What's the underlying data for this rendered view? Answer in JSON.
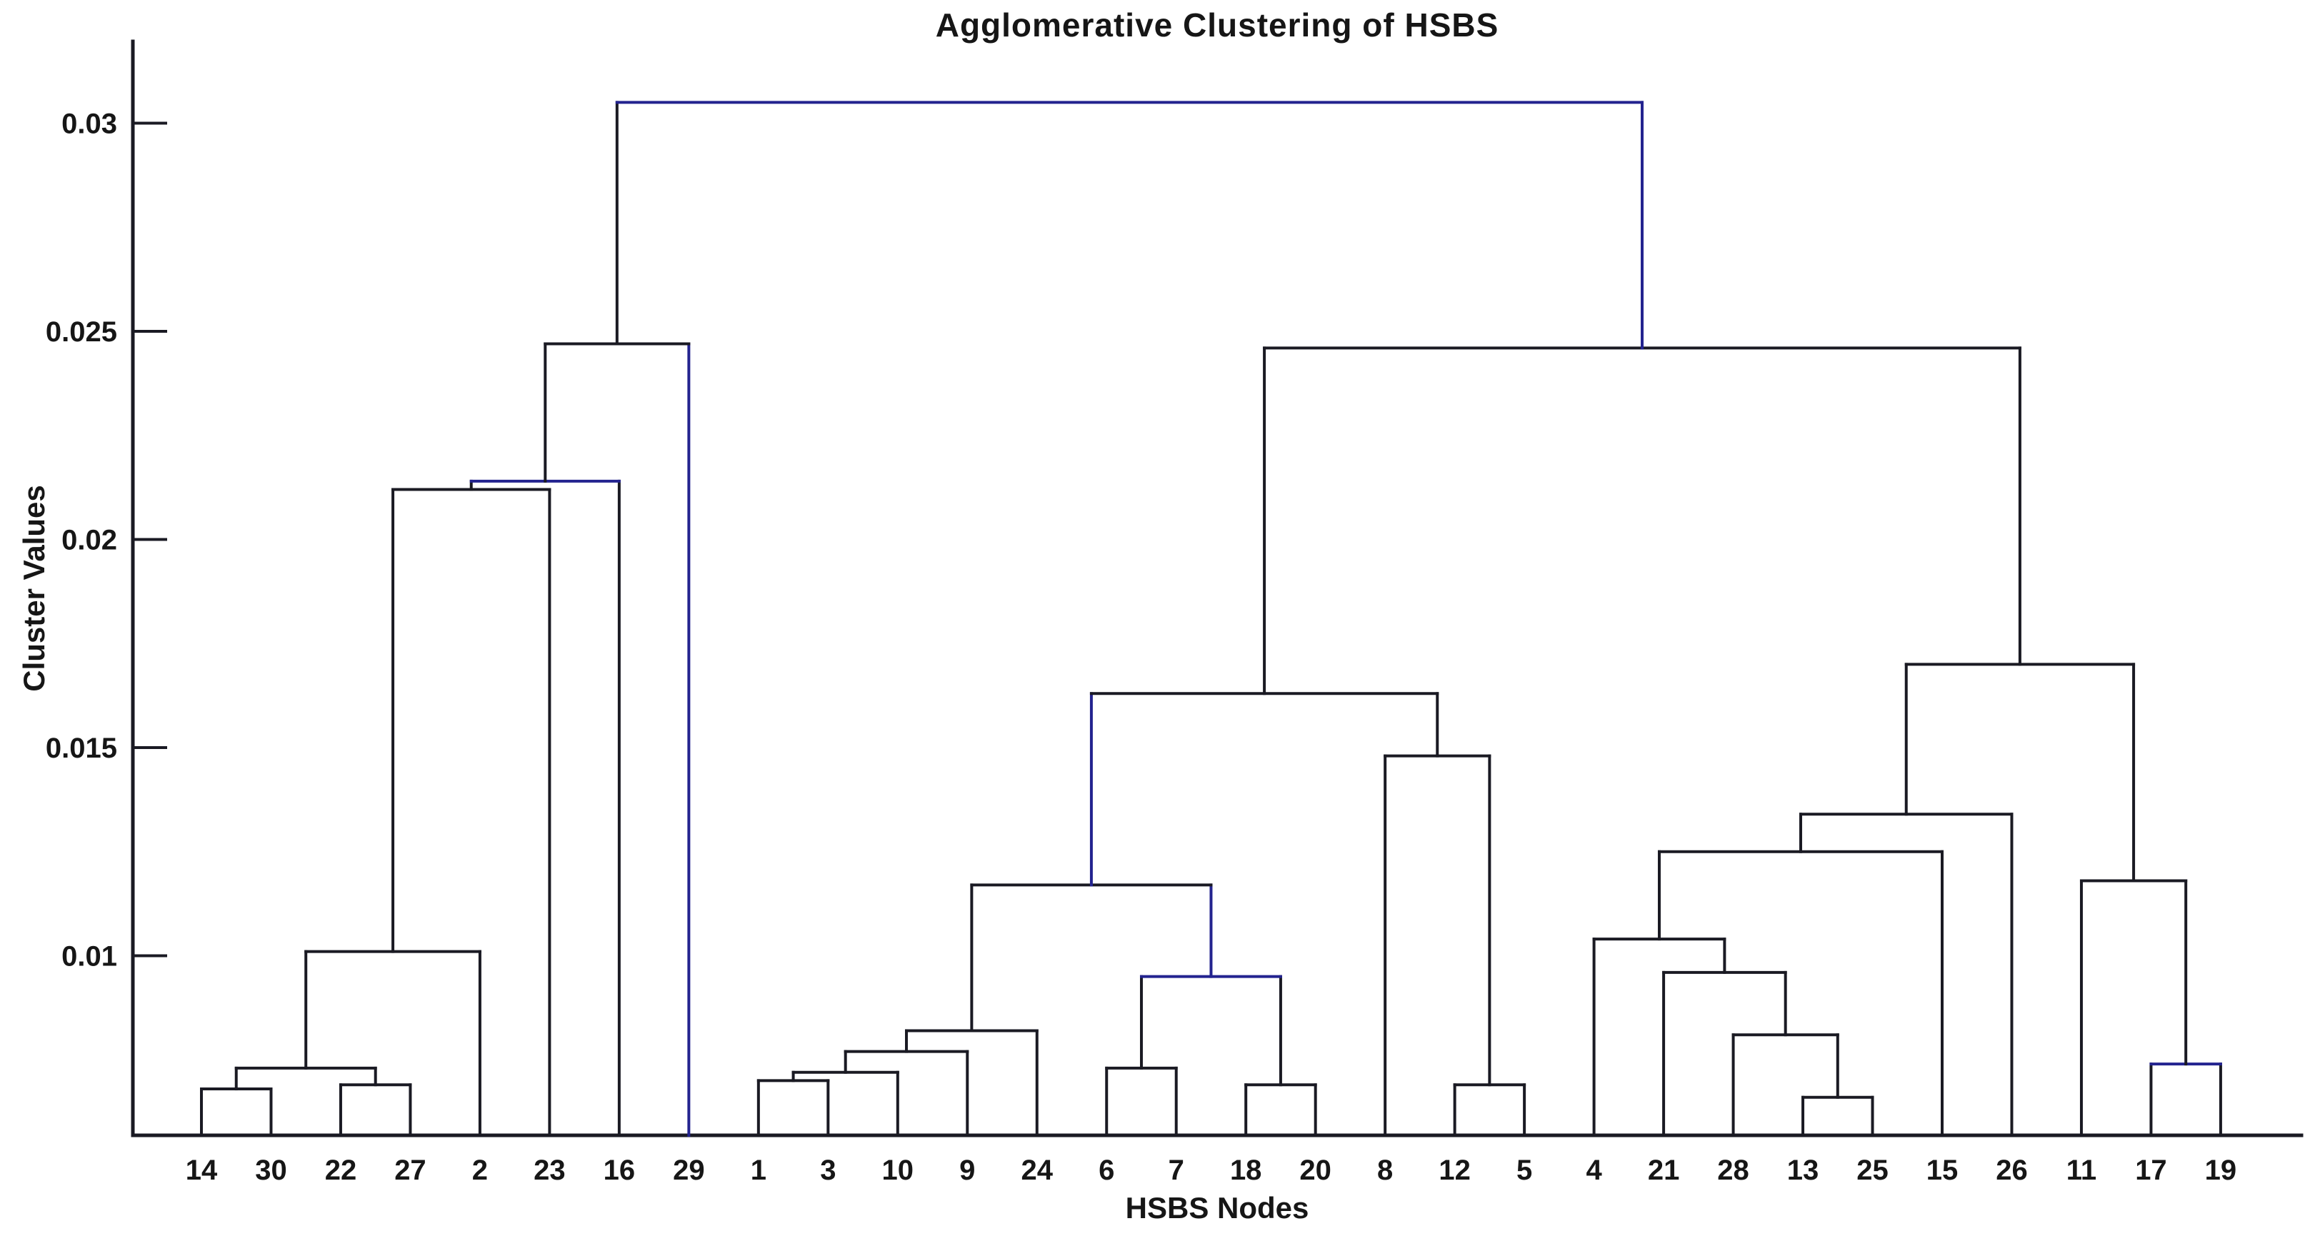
{
  "title": "Agglomerative Clustering of HSBS",
  "colors": {
    "line": "#1a1a23",
    "accent": "#23238f",
    "background": "#ffffff",
    "text": "#161616"
  },
  "chart_data": {
    "type": "dendrogram",
    "title": "Agglomerative Clustering of HSBS",
    "xlabel": "HSBS Nodes",
    "ylabel": "Cluster Values",
    "grid": false,
    "legend": false,
    "ylim": [
      0.0057,
      0.032
    ],
    "y_ticks": [
      0.01,
      0.015,
      0.02,
      0.025,
      0.03
    ],
    "y_tick_labels": [
      "0.01",
      "0.015",
      "0.02",
      "0.025",
      "0.03"
    ],
    "leaf_order": [
      "14",
      "30",
      "22",
      "27",
      "2",
      "23",
      "16",
      "29",
      "1",
      "3",
      "10",
      "9",
      "24",
      "6",
      "7",
      "18",
      "20",
      "8",
      "12",
      "5",
      "4",
      "21",
      "28",
      "13",
      "25",
      "15",
      "26",
      "11",
      "17",
      "19"
    ],
    "merges": [
      {
        "id": "L1",
        "a": "14",
        "b": "30",
        "h": 0.0068
      },
      {
        "id": "L2",
        "a": "22",
        "b": "27",
        "h": 0.0069
      },
      {
        "id": "L3",
        "a": "L1",
        "b": "L2",
        "h": 0.0073
      },
      {
        "id": "L4",
        "a": "L3",
        "b": "2",
        "h": 0.0101
      },
      {
        "id": "L5",
        "a": "L4",
        "b": "23",
        "h": 0.0212
      },
      {
        "id": "L6",
        "a": "L5",
        "b": "16",
        "h": 0.0214
      },
      {
        "id": "L7",
        "a": "L6",
        "b": "29",
        "h": 0.0247
      },
      {
        "id": "M1",
        "a": "1",
        "b": "3",
        "h": 0.007
      },
      {
        "id": "M2",
        "a": "M1",
        "b": "10",
        "h": 0.0072
      },
      {
        "id": "M3",
        "a": "M2",
        "b": "9",
        "h": 0.0077
      },
      {
        "id": "M4",
        "a": "M3",
        "b": "24",
        "h": 0.0082
      },
      {
        "id": "M5",
        "a": "6",
        "b": "7",
        "h": 0.0073
      },
      {
        "id": "M6",
        "a": "18",
        "b": "20",
        "h": 0.0069
      },
      {
        "id": "M7",
        "a": "M5",
        "b": "M6",
        "h": 0.0095
      },
      {
        "id": "M8",
        "a": "M4",
        "b": "M7",
        "h": 0.0117
      },
      {
        "id": "N1",
        "a": "12",
        "b": "5",
        "h": 0.0069
      },
      {
        "id": "N2",
        "a": "8",
        "b": "N1",
        "h": 0.0148
      },
      {
        "id": "N3",
        "a": "M8",
        "b": "N2",
        "h": 0.0163
      },
      {
        "id": "R1",
        "a": "13",
        "b": "25",
        "h": 0.0066
      },
      {
        "id": "R2",
        "a": "28",
        "b": "R1",
        "h": 0.0081
      },
      {
        "id": "R3",
        "a": "21",
        "b": "R2",
        "h": 0.0096
      },
      {
        "id": "R4",
        "a": "4",
        "b": "R3",
        "h": 0.0104
      },
      {
        "id": "R5",
        "a": "R4",
        "b": "15",
        "h": 0.0125
      },
      {
        "id": "R6",
        "a": "R5",
        "b": "26",
        "h": 0.0134
      },
      {
        "id": "R7",
        "a": "17",
        "b": "19",
        "h": 0.0074
      },
      {
        "id": "R8",
        "a": "11",
        "b": "R7",
        "h": 0.0118
      },
      {
        "id": "R9",
        "a": "R6",
        "b": "R8",
        "h": 0.017
      },
      {
        "id": "T1",
        "a": "N3",
        "b": "R9",
        "h": 0.0246
      },
      {
        "id": "ROOT",
        "a": "L7",
        "b": "T1",
        "h": 0.0305
      }
    ],
    "accent_segments": [
      "L6.bar",
      "L7.right",
      "M7.bar",
      "M8.right",
      "N3.left",
      "R7.bar",
      "ROOT.bar",
      "ROOT.right"
    ]
  }
}
